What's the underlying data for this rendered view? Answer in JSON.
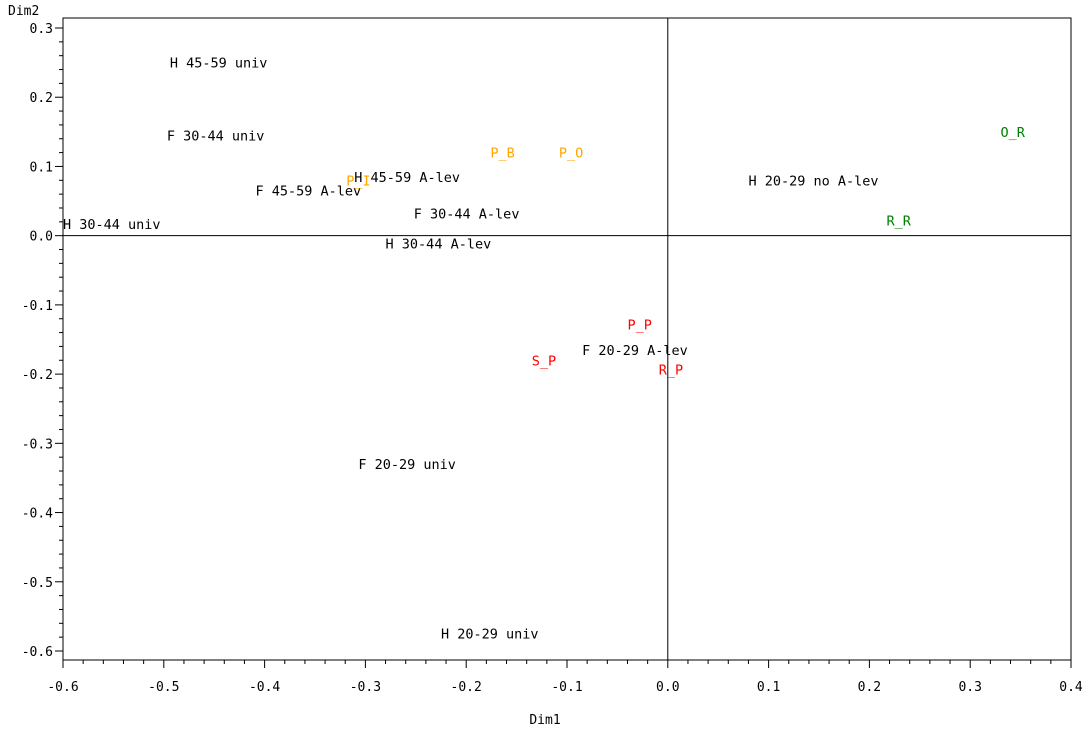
{
  "chart_data": {
    "type": "scatter",
    "title": "",
    "xlabel": "Dim1",
    "ylabel": "Dim2",
    "xlim": [
      -0.6,
      0.4
    ],
    "ylim": [
      -0.6,
      0.3
    ],
    "x_ticks": [
      "-0.6",
      "-0.5",
      "-0.4",
      "-0.3",
      "-0.2",
      "-0.1",
      "0.0",
      "0.1",
      "0.2",
      "0.3",
      "0.4"
    ],
    "y_ticks": [
      "-0.6",
      "-0.5",
      "-0.4",
      "-0.3",
      "-0.2",
      "-0.1",
      "0.0",
      "0.1",
      "0.2",
      "0.3"
    ],
    "reference_lines": {
      "x": 0,
      "y": 0
    },
    "grid": false,
    "points": [
      {
        "label": "H 45-59 univ",
        "x": -0.494,
        "y": 0.25,
        "color": "#000000"
      },
      {
        "label": "F 30-44 univ",
        "x": -0.497,
        "y": 0.145,
        "color": "#000000"
      },
      {
        "label": "F 45-59 A-lev",
        "x": -0.409,
        "y": 0.065,
        "color": "#000000"
      },
      {
        "label": "H 30-44 univ",
        "x": -0.6,
        "y": 0.017,
        "color": "#000000"
      },
      {
        "label": "H 45-59 A-lev",
        "x": -0.311,
        "y": 0.085,
        "color": "#000000"
      },
      {
        "label": "F 30-44 A-lev",
        "x": -0.252,
        "y": 0.032,
        "color": "#000000"
      },
      {
        "label": "H 30-44 A-lev",
        "x": -0.28,
        "y": -0.011,
        "color": "#000000"
      },
      {
        "label": "H 20-29 no A-lev",
        "x": 0.08,
        "y": 0.08,
        "color": "#000000"
      },
      {
        "label": "F 20-29 A-lev",
        "x": -0.085,
        "y": -0.165,
        "color": "#000000"
      },
      {
        "label": "F 20-29 univ",
        "x": -0.307,
        "y": -0.33,
        "color": "#000000"
      },
      {
        "label": "H 20-29 univ",
        "x": -0.225,
        "y": -0.575,
        "color": "#000000"
      },
      {
        "label": "P_B",
        "x": -0.176,
        "y": 0.12,
        "color": "#FFA500"
      },
      {
        "label": "P_O",
        "x": -0.108,
        "y": 0.12,
        "color": "#FFA500"
      },
      {
        "label": "P_I",
        "x": -0.319,
        "y": 0.08,
        "color": "#FFA500"
      },
      {
        "label": "O_R",
        "x": 0.33,
        "y": 0.15,
        "color": "#008000"
      },
      {
        "label": "R_R",
        "x": 0.217,
        "y": 0.022,
        "color": "#008000"
      },
      {
        "label": "P_P",
        "x": -0.04,
        "y": -0.128,
        "color": "#FF0000"
      },
      {
        "label": "S_P",
        "x": -0.135,
        "y": -0.18,
        "color": "#FF0000"
      },
      {
        "label": "R_P",
        "x": -0.009,
        "y": -0.193,
        "color": "#FF0000"
      }
    ]
  }
}
